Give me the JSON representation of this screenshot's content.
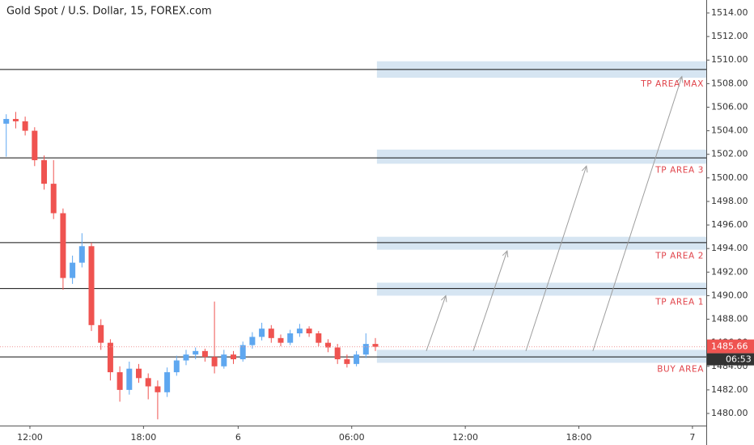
{
  "chart_data": {
    "type": "candlestick",
    "title": "Gold Spot / U.S. Dollar, 15, FOREX.com",
    "xlim": [
      -1.58,
      35.73
    ],
    "ylim": [
      1478.97,
      1515.1
    ],
    "xticks": [
      {
        "value": 0,
        "label": "12:00"
      },
      {
        "value": 6,
        "label": "18:00"
      },
      {
        "value": 11,
        "label": "6"
      },
      {
        "value": 17,
        "label": "06:00"
      },
      {
        "value": 23,
        "label": "12:00"
      },
      {
        "value": 29,
        "label": "18:00"
      },
      {
        "value": 35,
        "label": "7"
      }
    ],
    "yticks": [
      {
        "value": 1480,
        "label": "1480.00"
      },
      {
        "value": 1482,
        "label": "1482.00"
      },
      {
        "value": 1484,
        "label": "1484.00"
      },
      {
        "value": 1486,
        "label": "1486.00"
      },
      {
        "value": 1488,
        "label": "1488.00"
      },
      {
        "value": 1490,
        "label": "1490.00"
      },
      {
        "value": 1492,
        "label": "1492.00"
      },
      {
        "value": 1494,
        "label": "1494.00"
      },
      {
        "value": 1496,
        "label": "1496.00"
      },
      {
        "value": 1498,
        "label": "1498.00"
      },
      {
        "value": 1500,
        "label": "1500.00"
      },
      {
        "value": 1502,
        "label": "1502.00"
      },
      {
        "value": 1504,
        "label": "1504.00"
      },
      {
        "value": 1506,
        "label": "1506.00"
      },
      {
        "value": 1508,
        "label": "1508.00"
      },
      {
        "value": 1510,
        "label": "1510.00"
      },
      {
        "value": 1512,
        "label": "1512.00"
      },
      {
        "value": 1514,
        "label": "1514.00"
      }
    ],
    "up_color": "#5ea7f0",
    "down_color": "#ef5350",
    "x": [
      -1.25,
      -0.75,
      -0.25,
      0.25,
      0.75,
      1.25,
      1.75,
      2.25,
      2.75,
      3.25,
      3.75,
      4.25,
      4.75,
      5.25,
      5.75,
      6.25,
      6.75,
      7.25,
      7.75,
      8.25,
      8.75,
      9.25,
      9.75,
      10.25,
      10.75,
      11.25,
      11.75,
      12.25,
      12.75,
      13.25,
      13.75,
      14.25,
      14.75,
      15.25,
      15.75,
      16.25,
      16.75,
      17.25,
      17.75,
      18.25
    ],
    "candles": [
      [
        1504.6,
        1505.4,
        1501.8,
        1505.0
      ],
      [
        1505.0,
        1505.6,
        1504.2,
        1504.8
      ],
      [
        1504.8,
        1505.2,
        1503.6,
        1504.0
      ],
      [
        1504.0,
        1504.3,
        1501.0,
        1501.5
      ],
      [
        1501.5,
        1501.9,
        1499.0,
        1499.5
      ],
      [
        1499.5,
        1501.5,
        1496.5,
        1497.0
      ],
      [
        1497.0,
        1497.4,
        1490.5,
        1491.5
      ],
      [
        1491.5,
        1493.4,
        1491.0,
        1492.8
      ],
      [
        1492.8,
        1495.3,
        1492.4,
        1494.2
      ],
      [
        1494.2,
        1494.5,
        1487.0,
        1487.5
      ],
      [
        1487.5,
        1488.0,
        1485.4,
        1486.0
      ],
      [
        1486.0,
        1486.3,
        1482.8,
        1483.5
      ],
      [
        1483.5,
        1484.0,
        1481.0,
        1482.0
      ],
      [
        1482.0,
        1484.4,
        1481.6,
        1483.8
      ],
      [
        1483.8,
        1484.2,
        1482.6,
        1483.0
      ],
      [
        1483.0,
        1483.4,
        1481.2,
        1482.3
      ],
      [
        1482.3,
        1482.8,
        1479.5,
        1481.8
      ],
      [
        1481.8,
        1483.9,
        1481.4,
        1483.5
      ],
      [
        1483.5,
        1484.9,
        1483.2,
        1484.5
      ],
      [
        1484.5,
        1485.4,
        1484.1,
        1485.0
      ],
      [
        1485.0,
        1485.6,
        1484.6,
        1485.3
      ],
      [
        1485.3,
        1485.5,
        1484.4,
        1484.8
      ],
      [
        1484.8,
        1489.5,
        1483.4,
        1484.0
      ],
      [
        1484.0,
        1485.4,
        1483.8,
        1485.0
      ],
      [
        1485.0,
        1485.3,
        1484.2,
        1484.6
      ],
      [
        1484.6,
        1486.1,
        1484.4,
        1485.8
      ],
      [
        1485.8,
        1486.9,
        1485.5,
        1486.5
      ],
      [
        1486.5,
        1487.7,
        1486.2,
        1487.2
      ],
      [
        1487.2,
        1487.5,
        1486.0,
        1486.4
      ],
      [
        1486.4,
        1486.7,
        1485.7,
        1486.0
      ],
      [
        1486.0,
        1487.1,
        1485.8,
        1486.8
      ],
      [
        1486.8,
        1487.6,
        1486.5,
        1487.2
      ],
      [
        1487.2,
        1487.4,
        1486.5,
        1486.8
      ],
      [
        1486.8,
        1487.0,
        1485.7,
        1486.0
      ],
      [
        1486.0,
        1486.3,
        1485.2,
        1485.6
      ],
      [
        1485.6,
        1485.9,
        1484.2,
        1484.6
      ],
      [
        1484.6,
        1485.0,
        1483.9,
        1484.2
      ],
      [
        1484.2,
        1485.3,
        1484.0,
        1485.0
      ],
      [
        1485.0,
        1486.8,
        1484.7,
        1485.9
      ],
      [
        1485.9,
        1486.4,
        1485.3,
        1485.66
      ]
    ],
    "last_price": 1485.66,
    "countdown": "06:53",
    "zone_start": 18.33,
    "zones": [
      {
        "label": "TP AREA MAX",
        "line": 1509.2,
        "low": 1508.5,
        "high": 1509.9
      },
      {
        "label": "TP AREA 3",
        "line": 1501.7,
        "low": 1501.2,
        "high": 1502.4
      },
      {
        "label": "TP AREA 2",
        "line": 1494.5,
        "low": 1493.9,
        "high": 1495.0
      },
      {
        "label": "TP AREA 1",
        "line": 1490.6,
        "low": 1490.0,
        "high": 1491.1
      },
      {
        "label": "BUY AREA",
        "line": 1484.8,
        "low": 1484.3,
        "high": 1485.4
      }
    ],
    "arrows": [
      {
        "from": [
          20.94,
          1485.3
        ],
        "to": [
          21.97,
          1490.0
        ]
      },
      {
        "from": [
          23.42,
          1485.3
        ],
        "to": [
          25.21,
          1493.8
        ]
      },
      {
        "from": [
          26.2,
          1485.3
        ],
        "to": [
          29.4,
          1501.0
        ]
      },
      {
        "from": [
          29.74,
          1485.3
        ],
        "to": [
          34.44,
          1508.6
        ]
      }
    ]
  }
}
